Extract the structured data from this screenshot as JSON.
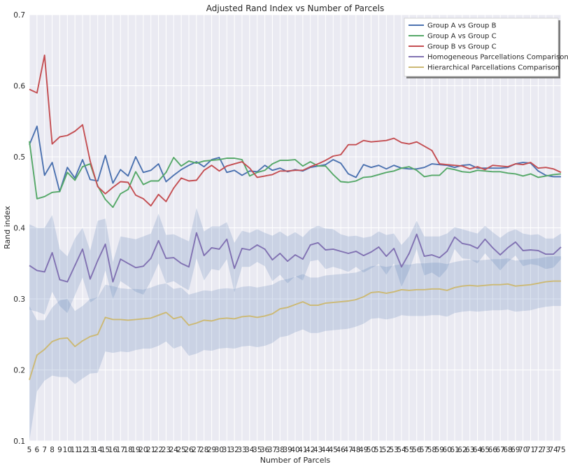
{
  "chart_data": {
    "type": "line",
    "title": "Adjusted Rand Index vs Number of Parcels",
    "xlabel": "Number of Parcels",
    "ylabel": "Rand index",
    "xlim": [
      5,
      75
    ],
    "ylim": [
      0.1,
      0.7
    ],
    "yticks": [
      "0.1",
      "0.2",
      "0.3",
      "0.4",
      "0.5",
      "0.6",
      "0.7"
    ],
    "x": [
      5,
      6,
      7,
      8,
      9,
      10,
      11,
      12,
      13,
      14,
      15,
      16,
      17,
      18,
      19,
      20,
      21,
      22,
      23,
      24,
      25,
      26,
      27,
      28,
      29,
      30,
      31,
      32,
      33,
      34,
      35,
      36,
      37,
      38,
      39,
      40,
      41,
      42,
      43,
      44,
      45,
      46,
      47,
      48,
      49,
      50,
      51,
      52,
      53,
      54,
      55,
      56,
      57,
      58,
      59,
      60,
      61,
      62,
      63,
      64,
      65,
      66,
      67,
      68,
      69,
      70,
      71,
      72,
      73,
      74,
      75
    ],
    "grid": true,
    "legend_position": "top-right",
    "series": [
      {
        "name": "Group A vs Group B",
        "color": "#4c72b0",
        "values": [
          0.517,
          0.543,
          0.474,
          0.492,
          0.451,
          0.485,
          0.47,
          0.496,
          0.468,
          0.466,
          0.502,
          0.463,
          0.482,
          0.473,
          0.5,
          0.478,
          0.481,
          0.49,
          0.465,
          0.474,
          0.482,
          0.488,
          0.493,
          0.486,
          0.496,
          0.499,
          0.478,
          0.481,
          0.474,
          0.48,
          0.479,
          0.488,
          0.481,
          0.484,
          0.479,
          0.482,
          0.48,
          0.485,
          0.487,
          0.489,
          0.496,
          0.491,
          0.476,
          0.471,
          0.489,
          0.485,
          0.488,
          0.483,
          0.488,
          0.484,
          0.483,
          0.483,
          0.485,
          0.49,
          0.489,
          0.488,
          0.485,
          0.488,
          0.489,
          0.484,
          0.484,
          0.484,
          0.484,
          0.485,
          0.49,
          0.492,
          0.491,
          0.48,
          0.474,
          0.472,
          0.472
        ]
      },
      {
        "name": "Group A vs Group C",
        "color": "#55a868",
        "values": [
          0.522,
          0.441,
          0.444,
          0.45,
          0.451,
          0.478,
          0.467,
          0.486,
          0.49,
          0.459,
          0.44,
          0.429,
          0.448,
          0.454,
          0.479,
          0.461,
          0.466,
          0.466,
          0.478,
          0.499,
          0.487,
          0.494,
          0.491,
          0.494,
          0.495,
          0.496,
          0.498,
          0.498,
          0.496,
          0.473,
          0.478,
          0.481,
          0.49,
          0.495,
          0.495,
          0.496,
          0.487,
          0.493,
          0.487,
          0.487,
          0.475,
          0.465,
          0.464,
          0.466,
          0.471,
          0.472,
          0.475,
          0.478,
          0.48,
          0.484,
          0.486,
          0.481,
          0.472,
          0.474,
          0.474,
          0.484,
          0.482,
          0.479,
          0.478,
          0.481,
          0.48,
          0.479,
          0.479,
          0.477,
          0.476,
          0.473,
          0.476,
          0.471,
          0.473,
          0.475,
          0.476
        ]
      },
      {
        "name": "Group B vs Group C",
        "color": "#c44e52",
        "values": [
          0.595,
          0.59,
          0.643,
          0.518,
          0.528,
          0.53,
          0.536,
          0.545,
          0.494,
          0.458,
          0.448,
          0.457,
          0.465,
          0.464,
          0.446,
          0.441,
          0.431,
          0.447,
          0.437,
          0.456,
          0.47,
          0.466,
          0.467,
          0.481,
          0.488,
          0.48,
          0.487,
          0.49,
          0.493,
          0.484,
          0.471,
          0.473,
          0.475,
          0.48,
          0.48,
          0.481,
          0.481,
          0.486,
          0.49,
          0.495,
          0.501,
          0.503,
          0.517,
          0.517,
          0.523,
          0.521,
          0.522,
          0.523,
          0.526,
          0.52,
          0.518,
          0.521,
          0.515,
          0.509,
          0.49,
          0.489,
          0.488,
          0.487,
          0.483,
          0.486,
          0.482,
          0.488,
          0.487,
          0.486,
          0.49,
          0.489,
          0.492,
          0.484,
          0.485,
          0.483,
          0.478
        ]
      },
      {
        "name": "Homogeneous Parcellations Comparison",
        "color": "#8172b2",
        "values": [
          0.347,
          0.34,
          0.338,
          0.365,
          0.327,
          0.324,
          0.347,
          0.37,
          0.328,
          0.354,
          0.377,
          0.324,
          0.356,
          0.35,
          0.344,
          0.346,
          0.357,
          0.382,
          0.357,
          0.358,
          0.35,
          0.345,
          0.393,
          0.361,
          0.372,
          0.37,
          0.384,
          0.343,
          0.371,
          0.369,
          0.376,
          0.37,
          0.355,
          0.364,
          0.353,
          0.362,
          0.356,
          0.376,
          0.379,
          0.369,
          0.37,
          0.367,
          0.364,
          0.367,
          0.361,
          0.366,
          0.373,
          0.36,
          0.371,
          0.345,
          0.364,
          0.391,
          0.36,
          0.362,
          0.358,
          0.367,
          0.387,
          0.378,
          0.376,
          0.371,
          0.384,
          0.372,
          0.362,
          0.372,
          0.38,
          0.368,
          0.369,
          0.368,
          0.363,
          0.363,
          0.373
        ]
      },
      {
        "name": "Hierarchical Parcellations Comparison",
        "color": "#ccb974",
        "values": [
          0.186,
          0.221,
          0.229,
          0.24,
          0.244,
          0.245,
          0.233,
          0.241,
          0.247,
          0.25,
          0.274,
          0.271,
          0.271,
          0.27,
          0.271,
          0.272,
          0.273,
          0.277,
          0.281,
          0.272,
          0.275,
          0.263,
          0.266,
          0.27,
          0.269,
          0.272,
          0.273,
          0.272,
          0.275,
          0.276,
          0.274,
          0.276,
          0.279,
          0.286,
          0.288,
          0.292,
          0.296,
          0.291,
          0.291,
          0.294,
          0.295,
          0.296,
          0.297,
          0.299,
          0.303,
          0.309,
          0.31,
          0.308,
          0.31,
          0.313,
          0.312,
          0.313,
          0.313,
          0.314,
          0.314,
          0.312,
          0.316,
          0.318,
          0.319,
          0.318,
          0.319,
          0.32,
          0.32,
          0.321,
          0.318,
          0.319,
          0.32,
          0.322,
          0.324,
          0.325,
          0.325
        ]
      }
    ],
    "bands": [
      {
        "series": "Homogeneous Parcellations Comparison",
        "color": "#4c72b0",
        "upper": [
          0.405,
          0.4,
          0.4,
          0.418,
          0.37,
          0.36,
          0.385,
          0.4,
          0.368,
          0.41,
          0.413,
          0.352,
          0.388,
          0.386,
          0.384,
          0.388,
          0.392,
          0.42,
          0.39,
          0.391,
          0.386,
          0.381,
          0.428,
          0.395,
          0.402,
          0.402,
          0.408,
          0.379,
          0.396,
          0.393,
          0.398,
          0.393,
          0.389,
          0.395,
          0.388,
          0.394,
          0.387,
          0.398,
          0.403,
          0.399,
          0.398,
          0.391,
          0.388,
          0.389,
          0.386,
          0.388,
          0.395,
          0.39,
          0.392,
          0.376,
          0.388,
          0.41,
          0.388,
          0.388,
          0.388,
          0.392,
          0.401,
          0.398,
          0.395,
          0.392,
          0.403,
          0.394,
          0.386,
          0.394,
          0.398,
          0.392,
          0.39,
          0.391,
          0.385,
          0.385,
          0.392
        ],
        "lower": [
          0.285,
          0.282,
          0.278,
          0.31,
          0.29,
          0.28,
          0.305,
          0.33,
          0.295,
          0.302,
          0.34,
          0.3,
          0.325,
          0.318,
          0.31,
          0.306,
          0.325,
          0.35,
          0.322,
          0.325,
          0.318,
          0.312,
          0.357,
          0.326,
          0.342,
          0.34,
          0.356,
          0.309,
          0.345,
          0.345,
          0.352,
          0.346,
          0.325,
          0.334,
          0.322,
          0.332,
          0.326,
          0.353,
          0.355,
          0.342,
          0.345,
          0.342,
          0.338,
          0.345,
          0.337,
          0.343,
          0.349,
          0.334,
          0.35,
          0.317,
          0.34,
          0.37,
          0.333,
          0.337,
          0.33,
          0.342,
          0.37,
          0.357,
          0.356,
          0.35,
          0.364,
          0.352,
          0.34,
          0.352,
          0.361,
          0.346,
          0.349,
          0.347,
          0.342,
          0.344,
          0.356
        ]
      },
      {
        "series": "Hierarchical Parcellations Comparison",
        "color": "#4c72b0",
        "upper": [
          0.29,
          0.27,
          0.27,
          0.288,
          0.298,
          0.3,
          0.283,
          0.29,
          0.3,
          0.302,
          0.32,
          0.318,
          0.315,
          0.314,
          0.314,
          0.313,
          0.316,
          0.32,
          0.322,
          0.314,
          0.316,
          0.306,
          0.309,
          0.312,
          0.311,
          0.314,
          0.315,
          0.314,
          0.317,
          0.318,
          0.316,
          0.318,
          0.32,
          0.326,
          0.328,
          0.331,
          0.335,
          0.33,
          0.33,
          0.333,
          0.334,
          0.335,
          0.336,
          0.337,
          0.341,
          0.346,
          0.347,
          0.345,
          0.347,
          0.349,
          0.348,
          0.35,
          0.35,
          0.351,
          0.351,
          0.349,
          0.352,
          0.354,
          0.355,
          0.354,
          0.355,
          0.356,
          0.356,
          0.357,
          0.354,
          0.355,
          0.356,
          0.357,
          0.359,
          0.36,
          0.36
        ],
        "lower": [
          0.1,
          0.17,
          0.185,
          0.192,
          0.19,
          0.19,
          0.18,
          0.188,
          0.195,
          0.196,
          0.226,
          0.224,
          0.226,
          0.225,
          0.228,
          0.23,
          0.23,
          0.234,
          0.24,
          0.23,
          0.234,
          0.22,
          0.223,
          0.228,
          0.227,
          0.23,
          0.231,
          0.23,
          0.233,
          0.234,
          0.232,
          0.234,
          0.238,
          0.246,
          0.248,
          0.253,
          0.257,
          0.252,
          0.252,
          0.255,
          0.256,
          0.257,
          0.258,
          0.261,
          0.265,
          0.272,
          0.273,
          0.271,
          0.273,
          0.277,
          0.276,
          0.276,
          0.276,
          0.277,
          0.277,
          0.275,
          0.28,
          0.282,
          0.283,
          0.282,
          0.283,
          0.284,
          0.284,
          0.285,
          0.282,
          0.283,
          0.284,
          0.287,
          0.289,
          0.29,
          0.29
        ]
      }
    ]
  }
}
